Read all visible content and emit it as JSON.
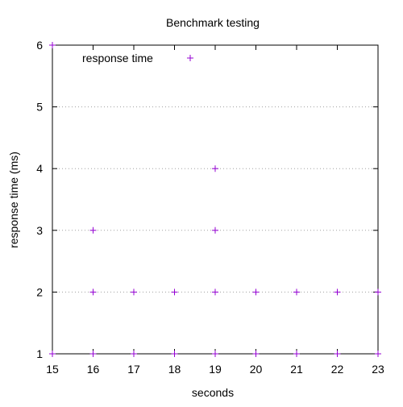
{
  "chart_data": {
    "type": "scatter",
    "title": "Benchmark testing",
    "xlabel": "seconds",
    "ylabel": "response time (ms)",
    "xlim": [
      15,
      23
    ],
    "ylim": [
      1,
      6
    ],
    "xticks": [
      15,
      16,
      17,
      18,
      19,
      20,
      21,
      22,
      23
    ],
    "yticks": [
      1,
      2,
      3,
      4,
      5,
      6
    ],
    "grid": "horizontal-dotted",
    "legend_position": "top-left",
    "marker": "plus",
    "series": [
      {
        "name": "response time",
        "color": "#9400d3",
        "points": [
          {
            "x": 15,
            "y": 1
          },
          {
            "x": 15,
            "y": 6
          },
          {
            "x": 16,
            "y": 1
          },
          {
            "x": 16,
            "y": 2
          },
          {
            "x": 16,
            "y": 3
          },
          {
            "x": 17,
            "y": 1
          },
          {
            "x": 17,
            "y": 2
          },
          {
            "x": 18,
            "y": 1
          },
          {
            "x": 18,
            "y": 2
          },
          {
            "x": 19,
            "y": 1
          },
          {
            "x": 19,
            "y": 2
          },
          {
            "x": 19,
            "y": 3
          },
          {
            "x": 19,
            "y": 4
          },
          {
            "x": 20,
            "y": 1
          },
          {
            "x": 20,
            "y": 2
          },
          {
            "x": 21,
            "y": 1
          },
          {
            "x": 21,
            "y": 2
          },
          {
            "x": 22,
            "y": 1
          },
          {
            "x": 22,
            "y": 2
          },
          {
            "x": 23,
            "y": 1
          },
          {
            "x": 23,
            "y": 2
          }
        ]
      }
    ]
  }
}
